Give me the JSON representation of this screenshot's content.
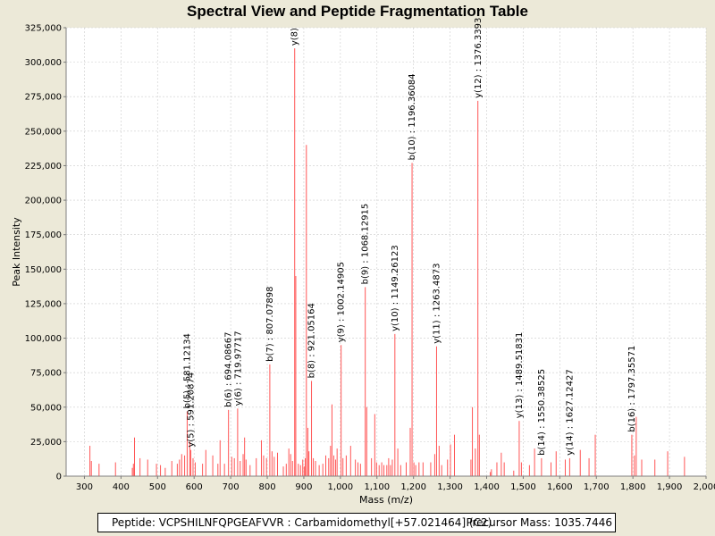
{
  "chart_data": {
    "type": "bar",
    "title": "Spectral View and Peptide Fragmentation Table",
    "xlabel": "Mass (m/z)",
    "ylabel": "Peak Intensity",
    "xlim": [
      250,
      2000
    ],
    "ylim": [
      0,
      325000
    ],
    "x_ticks": [
      300,
      400,
      500,
      600,
      700,
      800,
      900,
      1000,
      1100,
      1200,
      1300,
      1400,
      1500,
      1600,
      1700,
      1800,
      1900,
      2000
    ],
    "x_tick_labels": [
      "300",
      "400",
      "500",
      "600",
      "700",
      "800",
      "900",
      "1,000",
      "1,100",
      "1,200",
      "1,300",
      "1,400",
      "1,500",
      "1,600",
      "1,700",
      "1,800",
      "1,900",
      "2,000"
    ],
    "y_ticks": [
      0,
      25000,
      50000,
      75000,
      100000,
      125000,
      150000,
      175000,
      200000,
      225000,
      250000,
      275000,
      300000,
      325000
    ],
    "y_tick_labels": [
      "0",
      "25,000",
      "50,000",
      "75,000",
      "100,000",
      "125,000",
      "150,000",
      "175,000",
      "200,000",
      "225,000",
      "250,000",
      "275,000",
      "300,000",
      "325,000"
    ],
    "grid": true,
    "bar_color": "#FF5555",
    "peaks": [
      [
        315,
        22000
      ],
      [
        319,
        11000
      ],
      [
        340,
        9000
      ],
      [
        385,
        10000
      ],
      [
        431,
        6000
      ],
      [
        434,
        9000
      ],
      [
        437,
        28000
      ],
      [
        452,
        13000
      ],
      [
        473,
        12000
      ],
      [
        497,
        9000
      ],
      [
        508,
        8000
      ],
      [
        521,
        6000
      ],
      [
        539,
        11000
      ],
      [
        554,
        9000
      ],
      [
        560,
        12000
      ],
      [
        566,
        16000
      ],
      [
        574,
        15000
      ],
      [
        581,
        47000
      ],
      [
        588,
        25000
      ],
      [
        591,
        19000
      ],
      [
        597,
        13000
      ],
      [
        603,
        10000
      ],
      [
        623,
        9000
      ],
      [
        632,
        19000
      ],
      [
        651,
        15000
      ],
      [
        665,
        9000
      ],
      [
        671,
        26000
      ],
      [
        683,
        9000
      ],
      [
        694,
        48000
      ],
      [
        703,
        14000
      ],
      [
        710,
        13000
      ],
      [
        719,
        49000
      ],
      [
        726,
        11000
      ],
      [
        734,
        16000
      ],
      [
        738,
        28000
      ],
      [
        742,
        12000
      ],
      [
        753,
        8000
      ],
      [
        770,
        13000
      ],
      [
        784,
        26000
      ],
      [
        790,
        15000
      ],
      [
        798,
        13000
      ],
      [
        807,
        81000
      ],
      [
        813,
        18000
      ],
      [
        819,
        14000
      ],
      [
        828,
        17000
      ],
      [
        844,
        7000
      ],
      [
        852,
        9000
      ],
      [
        859,
        20000
      ],
      [
        864,
        16000
      ],
      [
        869,
        11000
      ],
      [
        875,
        310000
      ],
      [
        878,
        145000
      ],
      [
        885,
        9000
      ],
      [
        891,
        8000
      ],
      [
        897,
        12000
      ],
      [
        901,
        7000
      ],
      [
        904,
        13000
      ],
      [
        907,
        240000
      ],
      [
        911,
        35000
      ],
      [
        914,
        18000
      ],
      [
        921,
        69000
      ],
      [
        926,
        13000
      ],
      [
        932,
        11000
      ],
      [
        942,
        8000
      ],
      [
        952,
        9000
      ],
      [
        960,
        15000
      ],
      [
        968,
        13000
      ],
      [
        973,
        22000
      ],
      [
        977,
        52000
      ],
      [
        982,
        15000
      ],
      [
        987,
        12000
      ],
      [
        991,
        20000
      ],
      [
        1002,
        95000
      ],
      [
        1007,
        13000
      ],
      [
        1016,
        15000
      ],
      [
        1028,
        22000
      ],
      [
        1041,
        12000
      ],
      [
        1048,
        10000
      ],
      [
        1055,
        9000
      ],
      [
        1068,
        137000
      ],
      [
        1072,
        50000
      ],
      [
        1085,
        13000
      ],
      [
        1094,
        45000
      ],
      [
        1099,
        10000
      ],
      [
        1106,
        8000
      ],
      [
        1113,
        10000
      ],
      [
        1119,
        8000
      ],
      [
        1127,
        8000
      ],
      [
        1132,
        13000
      ],
      [
        1137,
        8000
      ],
      [
        1142,
        12000
      ],
      [
        1149,
        103000
      ],
      [
        1157,
        20000
      ],
      [
        1165,
        8000
      ],
      [
        1180,
        10000
      ],
      [
        1191,
        35000
      ],
      [
        1196,
        227000
      ],
      [
        1201,
        10000
      ],
      [
        1206,
        8000
      ],
      [
        1215,
        10000
      ],
      [
        1226,
        10000
      ],
      [
        1247,
        10000
      ],
      [
        1258,
        16000
      ],
      [
        1263,
        94000
      ],
      [
        1270,
        22000
      ],
      [
        1277,
        8000
      ],
      [
        1293,
        12000
      ],
      [
        1301,
        23000
      ],
      [
        1312,
        30000
      ],
      [
        1357,
        12000
      ],
      [
        1361,
        50000
      ],
      [
        1369,
        20000
      ],
      [
        1376,
        272000
      ],
      [
        1380,
        30000
      ],
      [
        1410,
        3000
      ],
      [
        1413,
        5000
      ],
      [
        1428,
        10000
      ],
      [
        1440,
        17000
      ],
      [
        1448,
        10000
      ],
      [
        1474,
        4000
      ],
      [
        1489,
        40000
      ],
      [
        1495,
        10000
      ],
      [
        1517,
        8000
      ],
      [
        1531,
        20000
      ],
      [
        1550,
        13000
      ],
      [
        1576,
        10000
      ],
      [
        1590,
        18000
      ],
      [
        1615,
        12000
      ],
      [
        1627,
        13000
      ],
      [
        1656,
        19000
      ],
      [
        1680,
        13000
      ],
      [
        1697,
        30000
      ],
      [
        1797,
        30000
      ],
      [
        1804,
        15000
      ],
      [
        1809,
        43000
      ],
      [
        1824,
        12000
      ],
      [
        1860,
        12000
      ],
      [
        1895,
        18000
      ],
      [
        1941,
        14000
      ]
    ],
    "annotations": [
      {
        "mz": 581.12134,
        "text": "b(5) : 581.12134",
        "intensity": 47000
      },
      {
        "mz": 591.20874,
        "text": "y(5) : 591.20874",
        "intensity": 19000
      },
      {
        "mz": 694.08667,
        "text": "b(6) : 694.08667",
        "intensity": 48000
      },
      {
        "mz": 719.97717,
        "text": "y(6) : 719.97717",
        "intensity": 49000
      },
      {
        "mz": 807.07898,
        "text": "b(7) : 807.07898",
        "intensity": 81000
      },
      {
        "mz": 875.0,
        "text": "y(8)",
        "intensity": 310000
      },
      {
        "mz": 921.05164,
        "text": "b(8) : 921.05164",
        "intensity": 69000
      },
      {
        "mz": 1002.14905,
        "text": "y(9) : 1002.14905",
        "intensity": 95000
      },
      {
        "mz": 1068.12915,
        "text": "b(9) : 1068.12915",
        "intensity": 137000
      },
      {
        "mz": 1149.26123,
        "text": "y(10) : 1149.26123",
        "intensity": 103000
      },
      {
        "mz": 1196.36084,
        "text": "b(10) : 1196.36084",
        "intensity": 227000
      },
      {
        "mz": 1263.4873,
        "text": "y(11) : 1263.4873",
        "intensity": 94000
      },
      {
        "mz": 1376.3393,
        "text": "y(12) : 1376.3393",
        "intensity": 272000
      },
      {
        "mz": 1489.51831,
        "text": "y(13) : 1489.51831",
        "intensity": 40000
      },
      {
        "mz": 1550.38525,
        "text": "b(14) : 1550.38525",
        "intensity": 13000
      },
      {
        "mz": 1627.12427,
        "text": "y(14) : 1627.12427",
        "intensity": 13000
      },
      {
        "mz": 1797.35571,
        "text": "b(16) : 1797.35571",
        "intensity": 30000
      }
    ]
  },
  "footer": {
    "peptide": "Peptide: VCPSHILNFQPGEAFVVR : Carbamidomethyl[+57.021464] (C2)",
    "precursor": "Precursor Mass: 1035.7446"
  }
}
